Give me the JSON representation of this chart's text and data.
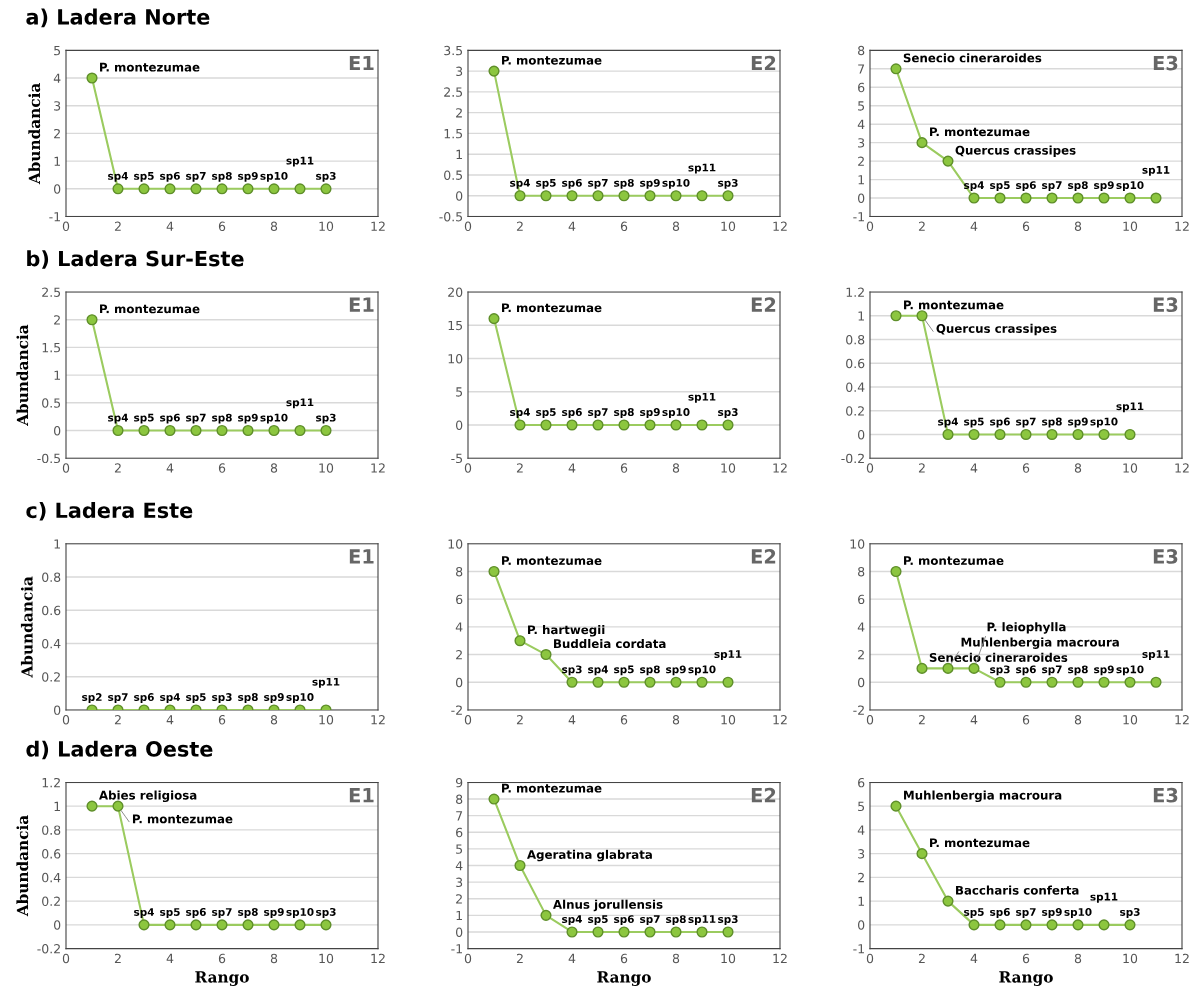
{
  "chart_data": [
    {
      "type": "line",
      "title": "a) Ladera Norte",
      "ylabel": "Abundancia",
      "x": [
        1,
        2,
        3,
        4,
        5,
        6,
        7,
        8,
        9,
        10
      ],
      "values": [
        4,
        0,
        0,
        0,
        0,
        0,
        0,
        0,
        0,
        0
      ],
      "color": "#9bcb5f",
      "marker": "circle",
      "line_style": "solid",
      "grid": "y",
      "xlim": [
        0,
        12
      ],
      "xticks": [
        0,
        2,
        4,
        6,
        8,
        10,
        12
      ],
      "ylim": [
        -1,
        5
      ],
      "yticks": [
        -1,
        0,
        1,
        2,
        3,
        4,
        5
      ],
      "annotations": [
        "E1",
        {
          "text": "P. montezumae",
          "x": 1,
          "y": 4
        },
        {
          "text": "sp4",
          "x": 2,
          "y": 0
        },
        {
          "text": "sp5",
          "x": 3,
          "y": 0
        },
        {
          "text": "sp6",
          "x": 4,
          "y": 0
        },
        {
          "text": "sp7",
          "x": 5,
          "y": 0
        },
        {
          "text": "sp8",
          "x": 6,
          "y": 0
        },
        {
          "text": "sp9",
          "x": 7,
          "y": 0
        },
        {
          "text": "sp10",
          "x": 8,
          "y": 0
        },
        {
          "text": "sp11",
          "x": 9,
          "y": 0
        },
        {
          "text": "sp3",
          "x": 10,
          "y": 0
        }
      ]
    },
    {
      "type": "line",
      "x": [
        1,
        2,
        3,
        4,
        5,
        6,
        7,
        8,
        9,
        10
      ],
      "values": [
        3,
        0,
        0,
        0,
        0,
        0,
        0,
        0,
        0,
        0
      ],
      "color": "#9bcb5f",
      "marker": "circle",
      "line_style": "solid",
      "grid": "y",
      "xlim": [
        0,
        12
      ],
      "xticks": [
        0,
        2,
        4,
        6,
        8,
        10,
        12
      ],
      "ylim": [
        -0.5,
        3.5
      ],
      "yticks": [
        -0.5,
        0,
        0.5,
        1,
        1.5,
        2,
        2.5,
        3,
        3.5
      ],
      "annotations": [
        "E2",
        {
          "text": "P. montezumae",
          "x": 1,
          "y": 3
        },
        {
          "text": "sp4",
          "x": 2,
          "y": 0
        },
        {
          "text": "sp5",
          "x": 3,
          "y": 0
        },
        {
          "text": "sp6",
          "x": 4,
          "y": 0
        },
        {
          "text": "sp7",
          "x": 5,
          "y": 0
        },
        {
          "text": "sp8",
          "x": 6,
          "y": 0
        },
        {
          "text": "sp9",
          "x": 7,
          "y": 0
        },
        {
          "text": "sp10",
          "x": 8,
          "y": 0
        },
        {
          "text": "sp11",
          "x": 9,
          "y": 0
        },
        {
          "text": "sp3",
          "x": 10,
          "y": 0
        }
      ]
    },
    {
      "type": "line",
      "x": [
        1,
        2,
        3,
        4,
        5,
        6,
        7,
        8,
        9,
        10,
        11
      ],
      "values": [
        7,
        3,
        2,
        0,
        0,
        0,
        0,
        0,
        0,
        0,
        0
      ],
      "color": "#9bcb5f",
      "marker": "circle",
      "line_style": "solid",
      "grid": "y",
      "xlim": [
        0,
        12
      ],
      "xticks": [
        0,
        2,
        4,
        6,
        8,
        10,
        12
      ],
      "ylim": [
        -1,
        8
      ],
      "yticks": [
        -1,
        0,
        1,
        2,
        3,
        4,
        5,
        6,
        7,
        8
      ],
      "annotations": [
        "E3",
        {
          "text": "Senecio cineraroides",
          "x": 1,
          "y": 7
        },
        {
          "text": "P. montezumae",
          "x": 2,
          "y": 3
        },
        {
          "text": "Quercus crassipes",
          "x": 3,
          "y": 2
        },
        {
          "text": "sp4",
          "x": 4,
          "y": 0
        },
        {
          "text": "sp5",
          "x": 5,
          "y": 0
        },
        {
          "text": "sp6",
          "x": 6,
          "y": 0
        },
        {
          "text": "sp7",
          "x": 7,
          "y": 0
        },
        {
          "text": "sp8",
          "x": 8,
          "y": 0
        },
        {
          "text": "sp9",
          "x": 9,
          "y": 0
        },
        {
          "text": "sp10",
          "x": 10,
          "y": 0
        },
        {
          "text": "sp11",
          "x": 11,
          "y": 0
        }
      ]
    },
    {
      "type": "line",
      "title": "b) Ladera Sur-Este",
      "ylabel": "Abundancia",
      "x": [
        1,
        2,
        3,
        4,
        5,
        6,
        7,
        8,
        9,
        10
      ],
      "values": [
        2,
        0,
        0,
        0,
        0,
        0,
        0,
        0,
        0,
        0
      ],
      "color": "#9bcb5f",
      "marker": "circle",
      "line_style": "solid",
      "grid": "y",
      "xlim": [
        0,
        12
      ],
      "xticks": [
        0,
        2,
        4,
        6,
        8,
        10,
        12
      ],
      "ylim": [
        -0.5,
        2.5
      ],
      "yticks": [
        -0.5,
        0,
        0.5,
        1,
        1.5,
        2,
        2.5
      ],
      "annotations": [
        "E1",
        {
          "text": "P. montezumae",
          "x": 1,
          "y": 2
        },
        {
          "text": "sp4",
          "x": 2,
          "y": 0
        },
        {
          "text": "sp5",
          "x": 3,
          "y": 0
        },
        {
          "text": "sp6",
          "x": 4,
          "y": 0
        },
        {
          "text": "sp7",
          "x": 5,
          "y": 0
        },
        {
          "text": "sp8",
          "x": 6,
          "y": 0
        },
        {
          "text": "sp9",
          "x": 7,
          "y": 0
        },
        {
          "text": "sp10",
          "x": 8,
          "y": 0
        },
        {
          "text": "sp11",
          "x": 9,
          "y": 0
        },
        {
          "text": "sp3",
          "x": 10,
          "y": 0
        }
      ]
    },
    {
      "type": "line",
      "x": [
        1,
        2,
        3,
        4,
        5,
        6,
        7,
        8,
        9,
        10
      ],
      "values": [
        16,
        0,
        0,
        0,
        0,
        0,
        0,
        0,
        0,
        0
      ],
      "color": "#9bcb5f",
      "marker": "circle",
      "line_style": "solid",
      "grid": "y",
      "xlim": [
        0,
        12
      ],
      "xticks": [
        0,
        2,
        4,
        6,
        8,
        10,
        12
      ],
      "ylim": [
        -5,
        20
      ],
      "yticks": [
        -5,
        0,
        5,
        10,
        15,
        20
      ],
      "annotations": [
        "E2",
        {
          "text": "P. montezumae",
          "x": 1,
          "y": 16
        },
        {
          "text": "sp4",
          "x": 2,
          "y": 0
        },
        {
          "text": "sp5",
          "x": 3,
          "y": 0
        },
        {
          "text": "sp6",
          "x": 4,
          "y": 0
        },
        {
          "text": "sp7",
          "x": 5,
          "y": 0
        },
        {
          "text": "sp8",
          "x": 6,
          "y": 0
        },
        {
          "text": "sp9",
          "x": 7,
          "y": 0
        },
        {
          "text": "sp10",
          "x": 8,
          "y": 0
        },
        {
          "text": "sp11",
          "x": 9,
          "y": 0
        },
        {
          "text": "sp3",
          "x": 10,
          "y": 0
        }
      ]
    },
    {
      "type": "line",
      "x": [
        1,
        2,
        3,
        4,
        5,
        6,
        7,
        8,
        9,
        10
      ],
      "values": [
        1,
        1,
        0,
        0,
        0,
        0,
        0,
        0,
        0,
        0
      ],
      "color": "#9bcb5f",
      "marker": "circle",
      "line_style": "solid",
      "grid": "y",
      "xlim": [
        0,
        12
      ],
      "xticks": [
        0,
        2,
        4,
        6,
        8,
        10,
        12
      ],
      "ylim": [
        -0.2,
        1.2
      ],
      "yticks": [
        -0.2,
        0,
        0.2,
        0.4,
        0.6,
        0.8,
        1,
        1.2
      ],
      "annotations": [
        "E3",
        {
          "text": "P. montezumae",
          "x": 1,
          "y": 1
        },
        {
          "text": "Quercus crassipes",
          "x": 2,
          "y": 1
        },
        {
          "text": "sp4",
          "x": 3,
          "y": 0
        },
        {
          "text": "sp5",
          "x": 4,
          "y": 0
        },
        {
          "text": "sp6",
          "x": 5,
          "y": 0
        },
        {
          "text": "sp7",
          "x": 6,
          "y": 0
        },
        {
          "text": "sp8",
          "x": 7,
          "y": 0
        },
        {
          "text": "sp9",
          "x": 8,
          "y": 0
        },
        {
          "text": "sp10",
          "x": 9,
          "y": 0
        },
        {
          "text": "sp11",
          "x": 10,
          "y": 0
        }
      ]
    },
    {
      "type": "line",
      "title": "c) Ladera Este",
      "ylabel": "Abundancia",
      "x": [
        1,
        2,
        3,
        4,
        5,
        6,
        7,
        8,
        9,
        10
      ],
      "values": [
        0,
        0,
        0,
        0,
        0,
        0,
        0,
        0,
        0,
        0
      ],
      "color": "#9bcb5f",
      "marker": "circle",
      "line_style": "solid",
      "grid": "y",
      "xlim": [
        0,
        12
      ],
      "xticks": [
        0,
        2,
        4,
        6,
        8,
        10,
        12
      ],
      "ylim": [
        0,
        1
      ],
      "yticks": [
        0,
        0.2,
        0.4,
        0.6,
        0.8,
        1
      ],
      "annotations": [
        "E1",
        {
          "text": "sp2",
          "x": 1,
          "y": 0
        },
        {
          "text": "sp7",
          "x": 2,
          "y": 0
        },
        {
          "text": "sp6",
          "x": 3,
          "y": 0
        },
        {
          "text": "sp4",
          "x": 4,
          "y": 0
        },
        {
          "text": "sp5",
          "x": 5,
          "y": 0
        },
        {
          "text": "sp3",
          "x": 6,
          "y": 0
        },
        {
          "text": "sp8",
          "x": 7,
          "y": 0
        },
        {
          "text": "sp9",
          "x": 8,
          "y": 0
        },
        {
          "text": "sp10",
          "x": 9,
          "y": 0
        },
        {
          "text": "sp11",
          "x": 10,
          "y": 0
        }
      ]
    },
    {
      "type": "line",
      "x": [
        1,
        2,
        3,
        4,
        5,
        6,
        7,
        8,
        9,
        10
      ],
      "values": [
        8,
        3,
        2,
        0,
        0,
        0,
        0,
        0,
        0,
        0
      ],
      "color": "#9bcb5f",
      "marker": "circle",
      "line_style": "solid",
      "grid": "y",
      "xlim": [
        0,
        12
      ],
      "xticks": [
        0,
        2,
        4,
        6,
        8,
        10,
        12
      ],
      "ylim": [
        -2,
        10
      ],
      "yticks": [
        -2,
        0,
        2,
        4,
        6,
        8,
        10
      ],
      "annotations": [
        "E2",
        {
          "text": "P. montezumae",
          "x": 1,
          "y": 8
        },
        {
          "text": "P. hartwegii",
          "x": 2,
          "y": 3
        },
        {
          "text": "Buddleia cordata",
          "x": 3,
          "y": 2
        },
        {
          "text": "sp3",
          "x": 4,
          "y": 0
        },
        {
          "text": "sp4",
          "x": 5,
          "y": 0
        },
        {
          "text": "sp5",
          "x": 6,
          "y": 0
        },
        {
          "text": "sp8",
          "x": 7,
          "y": 0
        },
        {
          "text": "sp9",
          "x": 8,
          "y": 0
        },
        {
          "text": "sp10",
          "x": 9,
          "y": 0
        },
        {
          "text": "sp11",
          "x": 10,
          "y": 0
        }
      ]
    },
    {
      "type": "line",
      "x": [
        1,
        2,
        3,
        4,
        5,
        6,
        7,
        8,
        9,
        10,
        11
      ],
      "values": [
        8,
        1,
        1,
        1,
        0,
        0,
        0,
        0,
        0,
        0,
        0
      ],
      "color": "#9bcb5f",
      "marker": "circle",
      "line_style": "solid",
      "grid": "y",
      "xlim": [
        0,
        12
      ],
      "xticks": [
        0,
        2,
        4,
        6,
        8,
        10,
        12
      ],
      "ylim": [
        -2,
        10
      ],
      "yticks": [
        -2,
        0,
        2,
        4,
        6,
        8,
        10
      ],
      "annotations": [
        "E3",
        {
          "text": "P. montezumae",
          "x": 1,
          "y": 8
        },
        {
          "text": "Senecio cineraroides",
          "x": 2,
          "y": 1
        },
        {
          "text": "Muhlenbergia macroura",
          "x": 3,
          "y": 1
        },
        {
          "text": "P. leiophylla",
          "x": 4,
          "y": 1
        },
        {
          "text": "sp3",
          "x": 5,
          "y": 0
        },
        {
          "text": "sp6",
          "x": 6,
          "y": 0
        },
        {
          "text": "sp7",
          "x": 7,
          "y": 0
        },
        {
          "text": "sp8",
          "x": 8,
          "y": 0
        },
        {
          "text": "sp9",
          "x": 9,
          "y": 0
        },
        {
          "text": "sp10",
          "x": 10,
          "y": 0
        },
        {
          "text": "sp11",
          "x": 11,
          "y": 0
        }
      ]
    },
    {
      "type": "line",
      "title": "d) Ladera Oeste",
      "ylabel": "Abundancia",
      "xlabel": "Rango",
      "x": [
        1,
        2,
        3,
        4,
        5,
        6,
        7,
        8,
        9,
        10
      ],
      "values": [
        1,
        1,
        0,
        0,
        0,
        0,
        0,
        0,
        0,
        0
      ],
      "color": "#9bcb5f",
      "marker": "circle",
      "line_style": "solid",
      "grid": "y",
      "xlim": [
        0,
        12
      ],
      "xticks": [
        0,
        2,
        4,
        6,
        8,
        10,
        12
      ],
      "ylim": [
        -0.2,
        1.2
      ],
      "yticks": [
        -0.2,
        0,
        0.2,
        0.4,
        0.6,
        0.8,
        1,
        1.2
      ],
      "annotations": [
        "E1",
        {
          "text": "Abies religiosa",
          "x": 1,
          "y": 1
        },
        {
          "text": "P. montezumae",
          "x": 2,
          "y": 1
        },
        {
          "text": "sp4",
          "x": 3,
          "y": 0
        },
        {
          "text": "sp5",
          "x": 4,
          "y": 0
        },
        {
          "text": "sp6",
          "x": 5,
          "y": 0
        },
        {
          "text": "sp7",
          "x": 6,
          "y": 0
        },
        {
          "text": "sp8",
          "x": 7,
          "y": 0
        },
        {
          "text": "sp9",
          "x": 8,
          "y": 0
        },
        {
          "text": "sp10",
          "x": 9,
          "y": 0
        },
        {
          "text": "sp3",
          "x": 10,
          "y": 0
        }
      ]
    },
    {
      "type": "line",
      "xlabel": "Rango",
      "x": [
        1,
        2,
        3,
        4,
        5,
        6,
        7,
        8,
        9,
        10
      ],
      "values": [
        8,
        4,
        1,
        0,
        0,
        0,
        0,
        0,
        0,
        0
      ],
      "color": "#9bcb5f",
      "marker": "circle",
      "line_style": "solid",
      "grid": "y",
      "xlim": [
        0,
        12
      ],
      "xticks": [
        0,
        2,
        4,
        6,
        8,
        10,
        12
      ],
      "ylim": [
        -1,
        9
      ],
      "yticks": [
        -1,
        0,
        1,
        2,
        3,
        4,
        5,
        6,
        7,
        8,
        9
      ],
      "annotations": [
        "E2",
        {
          "text": "P. montezumae",
          "x": 1,
          "y": 8
        },
        {
          "text": "Ageratina glabrata",
          "x": 2,
          "y": 4
        },
        {
          "text": "Alnus jorullensis",
          "x": 3,
          "y": 1
        },
        {
          "text": "sp4",
          "x": 4,
          "y": 0
        },
        {
          "text": "sp5",
          "x": 5,
          "y": 0
        },
        {
          "text": "sp6",
          "x": 6,
          "y": 0
        },
        {
          "text": "sp7",
          "x": 7,
          "y": 0
        },
        {
          "text": "sp8",
          "x": 8,
          "y": 0
        },
        {
          "text": "sp11",
          "x": 9,
          "y": 0
        },
        {
          "text": "sp3",
          "x": 10,
          "y": 0
        }
      ]
    },
    {
      "type": "line",
      "xlabel": "Rango",
      "x": [
        1,
        2,
        3,
        4,
        5,
        6,
        7,
        8,
        9,
        10
      ],
      "values": [
        5,
        3,
        1,
        0,
        0,
        0,
        0,
        0,
        0,
        0
      ],
      "color": "#9bcb5f",
      "marker": "circle",
      "line_style": "solid",
      "grid": "y",
      "xlim": [
        0,
        12
      ],
      "xticks": [
        0,
        2,
        4,
        6,
        8,
        10,
        12
      ],
      "ylim": [
        -1,
        6
      ],
      "yticks": [
        -1,
        0,
        1,
        2,
        3,
        4,
        5,
        6
      ],
      "annotations": [
        "E3",
        {
          "text": "Muhlenbergia macroura",
          "x": 1,
          "y": 5
        },
        {
          "text": "P. montezumae",
          "x": 2,
          "y": 3
        },
        {
          "text": "Baccharis conferta",
          "x": 3,
          "y": 1
        },
        {
          "text": "sp5",
          "x": 4,
          "y": 0
        },
        {
          "text": "sp6",
          "x": 5,
          "y": 0
        },
        {
          "text": "sp7",
          "x": 6,
          "y": 0
        },
        {
          "text": "sp9",
          "x": 7,
          "y": 0
        },
        {
          "text": "sp10",
          "x": 8,
          "y": 0
        },
        {
          "text": "sp11",
          "x": 9,
          "y": 0
        },
        {
          "text": "sp3",
          "x": 10,
          "y": 0
        }
      ]
    }
  ]
}
